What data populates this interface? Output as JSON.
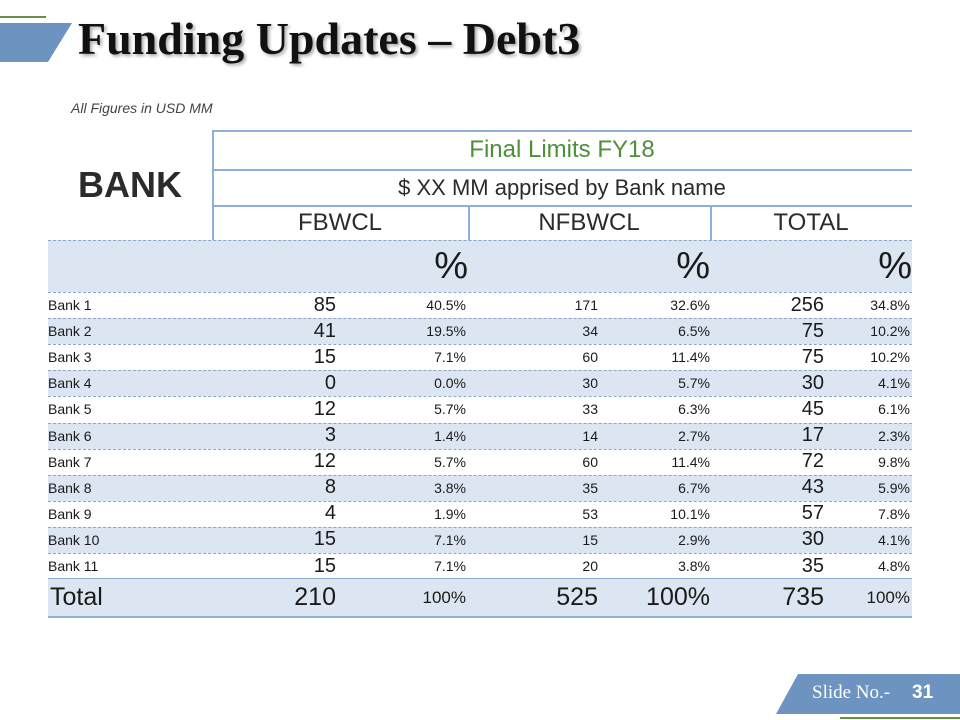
{
  "title": "Funding Updates – Debt3",
  "subtitle": "All Figures in USD MM",
  "header": {
    "bank_label": "BANK",
    "final_limits": "Final Limits FY18",
    "apprised": "$ XX MM apprised by Bank name",
    "col_fbwcl": "FBWCL",
    "col_nfbwcl": "NFBWCL",
    "col_total": "TOTAL",
    "pct_symbol": "%"
  },
  "rows": [
    {
      "bank": "Bank 1",
      "fb": "85",
      "fb_pct": "40.5%",
      "nfb": "171",
      "nfb_pct": "32.6%",
      "total": "256",
      "total_pct": "34.8%"
    },
    {
      "bank": "Bank 2",
      "fb": "41",
      "fb_pct": "19.5%",
      "nfb": "34",
      "nfb_pct": "6.5%",
      "total": "75",
      "total_pct": "10.2%"
    },
    {
      "bank": "Bank 3",
      "fb": "15",
      "fb_pct": "7.1%",
      "nfb": "60",
      "nfb_pct": "11.4%",
      "total": "75",
      "total_pct": "10.2%"
    },
    {
      "bank": "Bank 4",
      "fb": "0",
      "fb_pct": "0.0%",
      "nfb": "30",
      "nfb_pct": "5.7%",
      "total": "30",
      "total_pct": "4.1%"
    },
    {
      "bank": "Bank 5",
      "fb": "12",
      "fb_pct": "5.7%",
      "nfb": "33",
      "nfb_pct": "6.3%",
      "total": "45",
      "total_pct": "6.1%"
    },
    {
      "bank": "Bank 6",
      "fb": "3",
      "fb_pct": "1.4%",
      "nfb": "14",
      "nfb_pct": "2.7%",
      "total": "17",
      "total_pct": "2.3%"
    },
    {
      "bank": "Bank 7",
      "fb": "12",
      "fb_pct": "5.7%",
      "nfb": "60",
      "nfb_pct": "11.4%",
      "total": "72",
      "total_pct": "9.8%"
    },
    {
      "bank": "Bank 8",
      "fb": "8",
      "fb_pct": "3.8%",
      "nfb": "35",
      "nfb_pct": "6.7%",
      "total": "43",
      "total_pct": "5.9%"
    },
    {
      "bank": "Bank 9",
      "fb": "4",
      "fb_pct": "1.9%",
      "nfb": "53",
      "nfb_pct": "10.1%",
      "total": "57",
      "total_pct": "7.8%"
    },
    {
      "bank": "Bank 10",
      "fb": "15",
      "fb_pct": "7.1%",
      "nfb": "15",
      "nfb_pct": "2.9%",
      "total": "30",
      "total_pct": "4.1%"
    },
    {
      "bank": "Bank 11",
      "fb": "15",
      "fb_pct": "7.1%",
      "nfb": "20",
      "nfb_pct": "3.8%",
      "total": "35",
      "total_pct": "4.8%"
    }
  ],
  "total_row": {
    "label": "Total",
    "fb": "210",
    "fb_pct": "100%",
    "nfb": "525",
    "nfb_pct": "100%",
    "total": "735",
    "total_pct": "100%"
  },
  "footer": {
    "slide_label": "Slide No.-",
    "slide_number": "31"
  },
  "colors": {
    "accent": "#6d93c0",
    "shade": "#dce6f2",
    "heading_green": "#4f8f3a",
    "line_blue": "#8fb0d6"
  }
}
